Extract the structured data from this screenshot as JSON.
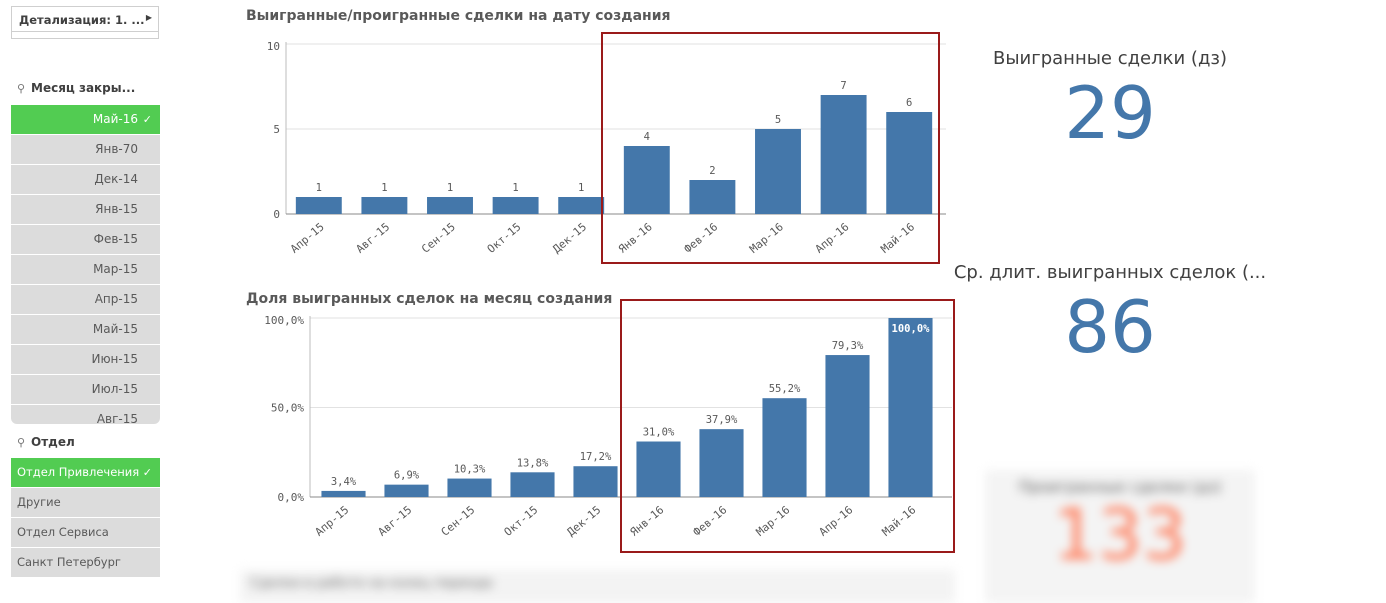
{
  "drilldown": {
    "label": "Детализация: 1. ...",
    "arrow_icon": "triangle-right-icon"
  },
  "listbox_month": {
    "title": "Месяц закры...",
    "items": [
      {
        "label": "Май-16",
        "selected": true
      },
      {
        "label": "Янв-70",
        "selected": false
      },
      {
        "label": "Дек-14",
        "selected": false
      },
      {
        "label": "Янв-15",
        "selected": false
      },
      {
        "label": "Фев-15",
        "selected": false
      },
      {
        "label": "Мар-15",
        "selected": false
      },
      {
        "label": "Апр-15",
        "selected": false
      },
      {
        "label": "Май-15",
        "selected": false
      },
      {
        "label": "Июн-15",
        "selected": false
      },
      {
        "label": "Июл-15",
        "selected": false
      },
      {
        "label": "Авг-15",
        "selected": false
      }
    ]
  },
  "listbox_dept": {
    "title": "Отдел",
    "items": [
      {
        "label": "Отдел Привлечения",
        "selected": true
      },
      {
        "label": "Другие",
        "selected": false
      },
      {
        "label": "Отдел Сервиса",
        "selected": false
      },
      {
        "label": "Санкт Петербург",
        "selected": false
      }
    ]
  },
  "kpis": [
    {
      "title": "Выигранные сделки (дз)",
      "value": "29"
    },
    {
      "title": "Ср. длит. выигранных сделок (...",
      "value": "86"
    },
    {
      "title": "Проигранные сделки (дз)",
      "value": "133"
    }
  ],
  "bottom_panel_title": "Сделки в работе на конец периода",
  "colors": {
    "bar": "#4477aa",
    "selected": "#52cc52",
    "highlight_box": "#9a1a1a",
    "kpi_lost": "#ff7f5e"
  },
  "chart_data": [
    {
      "type": "bar",
      "title": "Выигранные/проигранные сделки на дату создания",
      "categories": [
        "Апр-15",
        "Авг-15",
        "Сен-15",
        "Окт-15",
        "Дек-15",
        "Янв-16",
        "Фев-16",
        "Мар-16",
        "Апр-16",
        "Май-16"
      ],
      "values": [
        1,
        1,
        1,
        1,
        1,
        4,
        2,
        5,
        7,
        6
      ],
      "data_labels": [
        "1",
        "1",
        "1",
        "1",
        "1",
        "4",
        "2",
        "5",
        "7",
        "6"
      ],
      "ylim": [
        0,
        10
      ],
      "yticks": [
        0,
        5,
        10
      ],
      "ytick_labels": [
        "0",
        "5",
        "10"
      ],
      "grid": true
    },
    {
      "type": "bar",
      "title": "Доля выигранных сделок на месяц создания",
      "categories": [
        "Апр-15",
        "Авг-15",
        "Сен-15",
        "Окт-15",
        "Дек-15",
        "Янв-16",
        "Фев-16",
        "Мар-16",
        "Апр-16",
        "Май-16"
      ],
      "values": [
        3.4,
        6.9,
        10.3,
        13.8,
        17.2,
        31.0,
        37.9,
        55.2,
        79.3,
        100.0
      ],
      "data_labels": [
        "3,4%",
        "6,9%",
        "10,3%",
        "13,8%",
        "17,2%",
        "31,0%",
        "37,9%",
        "55,2%",
        "79,3%",
        "100,0%"
      ],
      "ylim": [
        0,
        100
      ],
      "yticks": [
        0,
        50,
        100
      ],
      "ytick_labels": [
        "0,0%",
        "50,0%",
        "100,0%"
      ],
      "grid": true
    }
  ]
}
